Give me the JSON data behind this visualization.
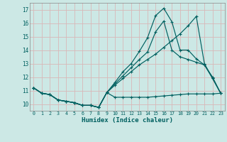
{
  "xlabel": "Humidex (Indice chaleur)",
  "bg_color": "#cce8e5",
  "grid_color": "#d8b8b8",
  "line_color": "#006060",
  "xlim": [
    -0.5,
    23.5
  ],
  "ylim": [
    9.5,
    17.5
  ],
  "yticks": [
    10,
    11,
    12,
    13,
    14,
    15,
    16,
    17
  ],
  "xticks": [
    0,
    1,
    2,
    3,
    4,
    5,
    6,
    7,
    8,
    9,
    10,
    11,
    12,
    13,
    14,
    15,
    16,
    17,
    18,
    19,
    20,
    21,
    22,
    23
  ],
  "line1_y": [
    11.2,
    10.8,
    10.7,
    10.3,
    10.2,
    10.1,
    9.9,
    9.9,
    9.75,
    10.85,
    10.5,
    10.5,
    10.5,
    10.5,
    10.5,
    10.55,
    10.6,
    10.65,
    10.7,
    10.75,
    10.75,
    10.75,
    10.75,
    10.8
  ],
  "line2_y": [
    11.2,
    10.8,
    10.7,
    10.3,
    10.2,
    10.1,
    9.9,
    9.9,
    9.75,
    10.85,
    11.4,
    11.9,
    12.4,
    12.9,
    13.3,
    13.7,
    14.2,
    14.7,
    15.2,
    15.8,
    16.5,
    13.0,
    11.9,
    10.8
  ],
  "line3_y": [
    11.2,
    10.8,
    10.7,
    10.3,
    10.2,
    10.1,
    9.9,
    9.9,
    9.75,
    10.85,
    11.5,
    12.1,
    12.7,
    13.3,
    13.85,
    15.35,
    16.15,
    14.0,
    13.5,
    13.3,
    13.1,
    12.9,
    12.0,
    10.8
  ],
  "line4_y": [
    11.2,
    10.8,
    10.7,
    10.3,
    10.2,
    10.1,
    9.9,
    9.9,
    9.75,
    10.85,
    11.6,
    12.4,
    13.0,
    13.9,
    14.9,
    16.55,
    17.1,
    16.1,
    14.0,
    14.0,
    13.35,
    12.9,
    11.9,
    10.8
  ]
}
